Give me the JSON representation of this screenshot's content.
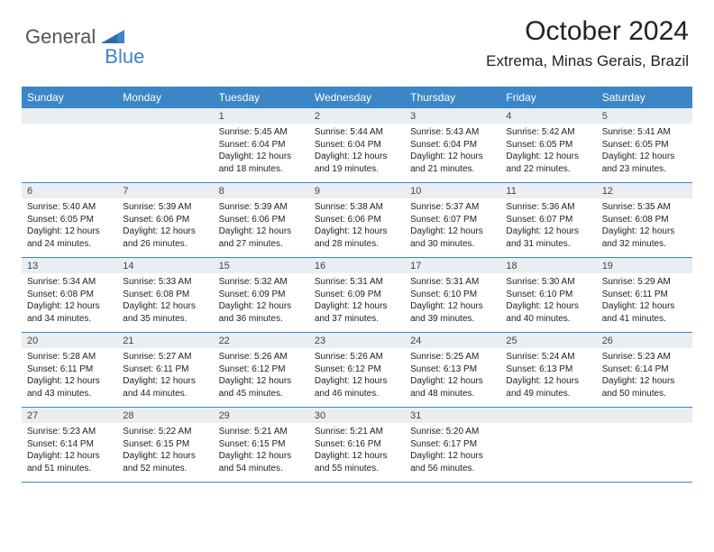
{
  "logo": {
    "part1": "General",
    "part2": "Blue"
  },
  "title": "October 2024",
  "location": "Extrema, Minas Gerais, Brazil",
  "colors": {
    "header_bg": "#3b86c7",
    "header_text": "#ffffff",
    "daynum_bg": "#e9eef3",
    "border": "#3b86c7",
    "logo_accent": "#3b86c7",
    "logo_text": "#555555"
  },
  "dayHeaders": [
    "Sunday",
    "Monday",
    "Tuesday",
    "Wednesday",
    "Thursday",
    "Friday",
    "Saturday"
  ],
  "weeks": [
    [
      {
        "empty": true
      },
      {
        "empty": true
      },
      {
        "num": "1",
        "sunrise": "5:45 AM",
        "sunset": "6:04 PM",
        "daylight": "12 hours and 18 minutes."
      },
      {
        "num": "2",
        "sunrise": "5:44 AM",
        "sunset": "6:04 PM",
        "daylight": "12 hours and 19 minutes."
      },
      {
        "num": "3",
        "sunrise": "5:43 AM",
        "sunset": "6:04 PM",
        "daylight": "12 hours and 21 minutes."
      },
      {
        "num": "4",
        "sunrise": "5:42 AM",
        "sunset": "6:05 PM",
        "daylight": "12 hours and 22 minutes."
      },
      {
        "num": "5",
        "sunrise": "5:41 AM",
        "sunset": "6:05 PM",
        "daylight": "12 hours and 23 minutes."
      }
    ],
    [
      {
        "num": "6",
        "sunrise": "5:40 AM",
        "sunset": "6:05 PM",
        "daylight": "12 hours and 24 minutes."
      },
      {
        "num": "7",
        "sunrise": "5:39 AM",
        "sunset": "6:06 PM",
        "daylight": "12 hours and 26 minutes."
      },
      {
        "num": "8",
        "sunrise": "5:39 AM",
        "sunset": "6:06 PM",
        "daylight": "12 hours and 27 minutes."
      },
      {
        "num": "9",
        "sunrise": "5:38 AM",
        "sunset": "6:06 PM",
        "daylight": "12 hours and 28 minutes."
      },
      {
        "num": "10",
        "sunrise": "5:37 AM",
        "sunset": "6:07 PM",
        "daylight": "12 hours and 30 minutes."
      },
      {
        "num": "11",
        "sunrise": "5:36 AM",
        "sunset": "6:07 PM",
        "daylight": "12 hours and 31 minutes."
      },
      {
        "num": "12",
        "sunrise": "5:35 AM",
        "sunset": "6:08 PM",
        "daylight": "12 hours and 32 minutes."
      }
    ],
    [
      {
        "num": "13",
        "sunrise": "5:34 AM",
        "sunset": "6:08 PM",
        "daylight": "12 hours and 34 minutes."
      },
      {
        "num": "14",
        "sunrise": "5:33 AM",
        "sunset": "6:08 PM",
        "daylight": "12 hours and 35 minutes."
      },
      {
        "num": "15",
        "sunrise": "5:32 AM",
        "sunset": "6:09 PM",
        "daylight": "12 hours and 36 minutes."
      },
      {
        "num": "16",
        "sunrise": "5:31 AM",
        "sunset": "6:09 PM",
        "daylight": "12 hours and 37 minutes."
      },
      {
        "num": "17",
        "sunrise": "5:31 AM",
        "sunset": "6:10 PM",
        "daylight": "12 hours and 39 minutes."
      },
      {
        "num": "18",
        "sunrise": "5:30 AM",
        "sunset": "6:10 PM",
        "daylight": "12 hours and 40 minutes."
      },
      {
        "num": "19",
        "sunrise": "5:29 AM",
        "sunset": "6:11 PM",
        "daylight": "12 hours and 41 minutes."
      }
    ],
    [
      {
        "num": "20",
        "sunrise": "5:28 AM",
        "sunset": "6:11 PM",
        "daylight": "12 hours and 43 minutes."
      },
      {
        "num": "21",
        "sunrise": "5:27 AM",
        "sunset": "6:11 PM",
        "daylight": "12 hours and 44 minutes."
      },
      {
        "num": "22",
        "sunrise": "5:26 AM",
        "sunset": "6:12 PM",
        "daylight": "12 hours and 45 minutes."
      },
      {
        "num": "23",
        "sunrise": "5:26 AM",
        "sunset": "6:12 PM",
        "daylight": "12 hours and 46 minutes."
      },
      {
        "num": "24",
        "sunrise": "5:25 AM",
        "sunset": "6:13 PM",
        "daylight": "12 hours and 48 minutes."
      },
      {
        "num": "25",
        "sunrise": "5:24 AM",
        "sunset": "6:13 PM",
        "daylight": "12 hours and 49 minutes."
      },
      {
        "num": "26",
        "sunrise": "5:23 AM",
        "sunset": "6:14 PM",
        "daylight": "12 hours and 50 minutes."
      }
    ],
    [
      {
        "num": "27",
        "sunrise": "5:23 AM",
        "sunset": "6:14 PM",
        "daylight": "12 hours and 51 minutes."
      },
      {
        "num": "28",
        "sunrise": "5:22 AM",
        "sunset": "6:15 PM",
        "daylight": "12 hours and 52 minutes."
      },
      {
        "num": "29",
        "sunrise": "5:21 AM",
        "sunset": "6:15 PM",
        "daylight": "12 hours and 54 minutes."
      },
      {
        "num": "30",
        "sunrise": "5:21 AM",
        "sunset": "6:16 PM",
        "daylight": "12 hours and 55 minutes."
      },
      {
        "num": "31",
        "sunrise": "5:20 AM",
        "sunset": "6:17 PM",
        "daylight": "12 hours and 56 minutes."
      },
      {
        "empty": true
      },
      {
        "empty": true
      }
    ]
  ],
  "labels": {
    "sunrise": "Sunrise:",
    "sunset": "Sunset:",
    "daylight": "Daylight:"
  }
}
